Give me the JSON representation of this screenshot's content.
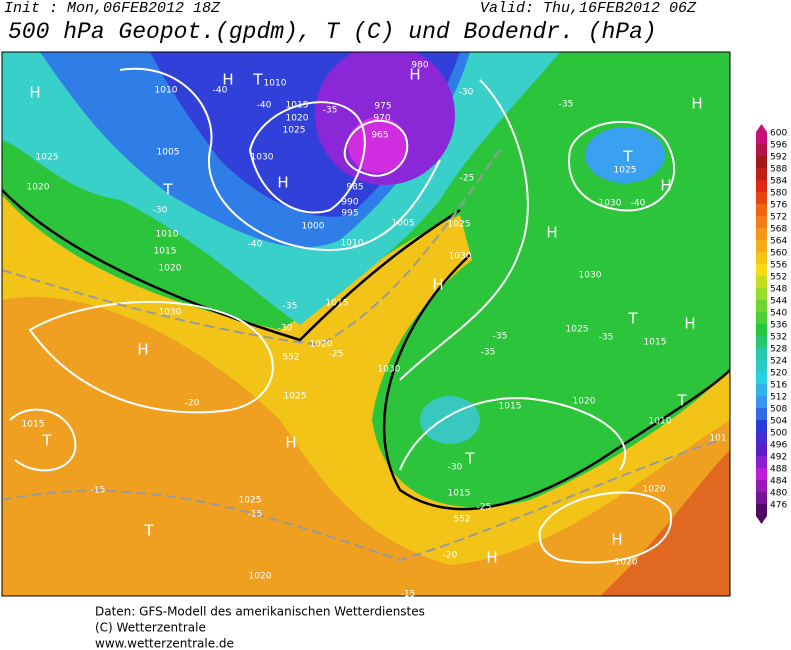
{
  "header": {
    "init": "Init : Mon,06FEB2012 18Z",
    "valid": "Valid: Thu,16FEB2012 06Z",
    "title": "500 hPa Geopot.(gpdm), T (C) und Bodendr. (hPa)"
  },
  "legend": {
    "labels": [
      600,
      596,
      592,
      588,
      584,
      580,
      576,
      572,
      568,
      564,
      560,
      556,
      552,
      548,
      544,
      540,
      536,
      532,
      528,
      524,
      520,
      516,
      512,
      508,
      504,
      500,
      496,
      492,
      488,
      484,
      480,
      476
    ]
  },
  "footer": {
    "lines": [
      "Daten: GFS-Modell des amerikanischen Wetterdienstes",
      "(C) Wetterzentrale",
      "www.wetterzentrale.de"
    ]
  },
  "map": {
    "labels": [
      "H",
      "H",
      "T",
      "1010",
      "1010",
      "-40",
      "1015",
      "-40",
      "1020",
      "-35",
      "1025",
      "1005",
      "1030",
      "H",
      "T",
      "1025",
      "1020",
      "-30",
      "1010",
      "1015",
      "1020",
      "-40",
      "1000",
      "1005",
      "1010",
      "990",
      "995",
      "985",
      "975",
      "970",
      "965",
      "980",
      "H",
      "-30",
      "-25",
      "-35",
      "T",
      "1025",
      "H",
      "1030",
      "-40",
      "H",
      "H",
      "1025",
      "1030",
      "H",
      "1030",
      "1025",
      "-35",
      "T",
      "H",
      "1015",
      "-35",
      "-35",
      "1015",
      "1020",
      "1010",
      "T",
      "101",
      "1015",
      "-35",
      "-30",
      "1020",
      "-25",
      "552",
      "1030",
      "1025",
      "-20",
      "1030",
      "H",
      "1015",
      "T",
      "H",
      "T",
      "-30",
      "1015",
      "-25",
      "552",
      "-15",
      "1025",
      "-15",
      "T",
      "H",
      "1020",
      "1020",
      "-20",
      "H",
      "1020",
      "-15"
    ]
  }
}
